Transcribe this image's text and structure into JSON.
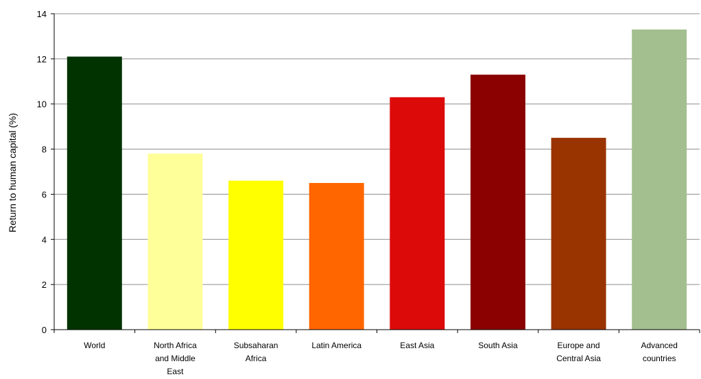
{
  "chart_data": {
    "type": "bar",
    "ylabel": "Return to human capital (%)",
    "xlabel": "",
    "ylim": [
      0,
      14
    ],
    "yticks": [
      0,
      2,
      4,
      6,
      8,
      10,
      12,
      14
    ],
    "grid": true,
    "legend": "none",
    "categories": [
      [
        "World"
      ],
      [
        "North Africa",
        "and Middle",
        "East"
      ],
      [
        "Subsaharan",
        "Africa"
      ],
      [
        "Latin America"
      ],
      [
        "East Asia"
      ],
      [
        "South Asia"
      ],
      [
        "Europe and",
        "Central Asia"
      ],
      [
        "Advanced",
        "countries"
      ]
    ],
    "values": [
      12.1,
      7.8,
      6.6,
      6.5,
      10.3,
      11.3,
      8.5,
      13.3
    ],
    "colors": [
      "#003300",
      "#ffff99",
      "#ffff00",
      "#ff6600",
      "#dd0a0a",
      "#8b0000",
      "#993300",
      "#a3bf8f"
    ]
  }
}
